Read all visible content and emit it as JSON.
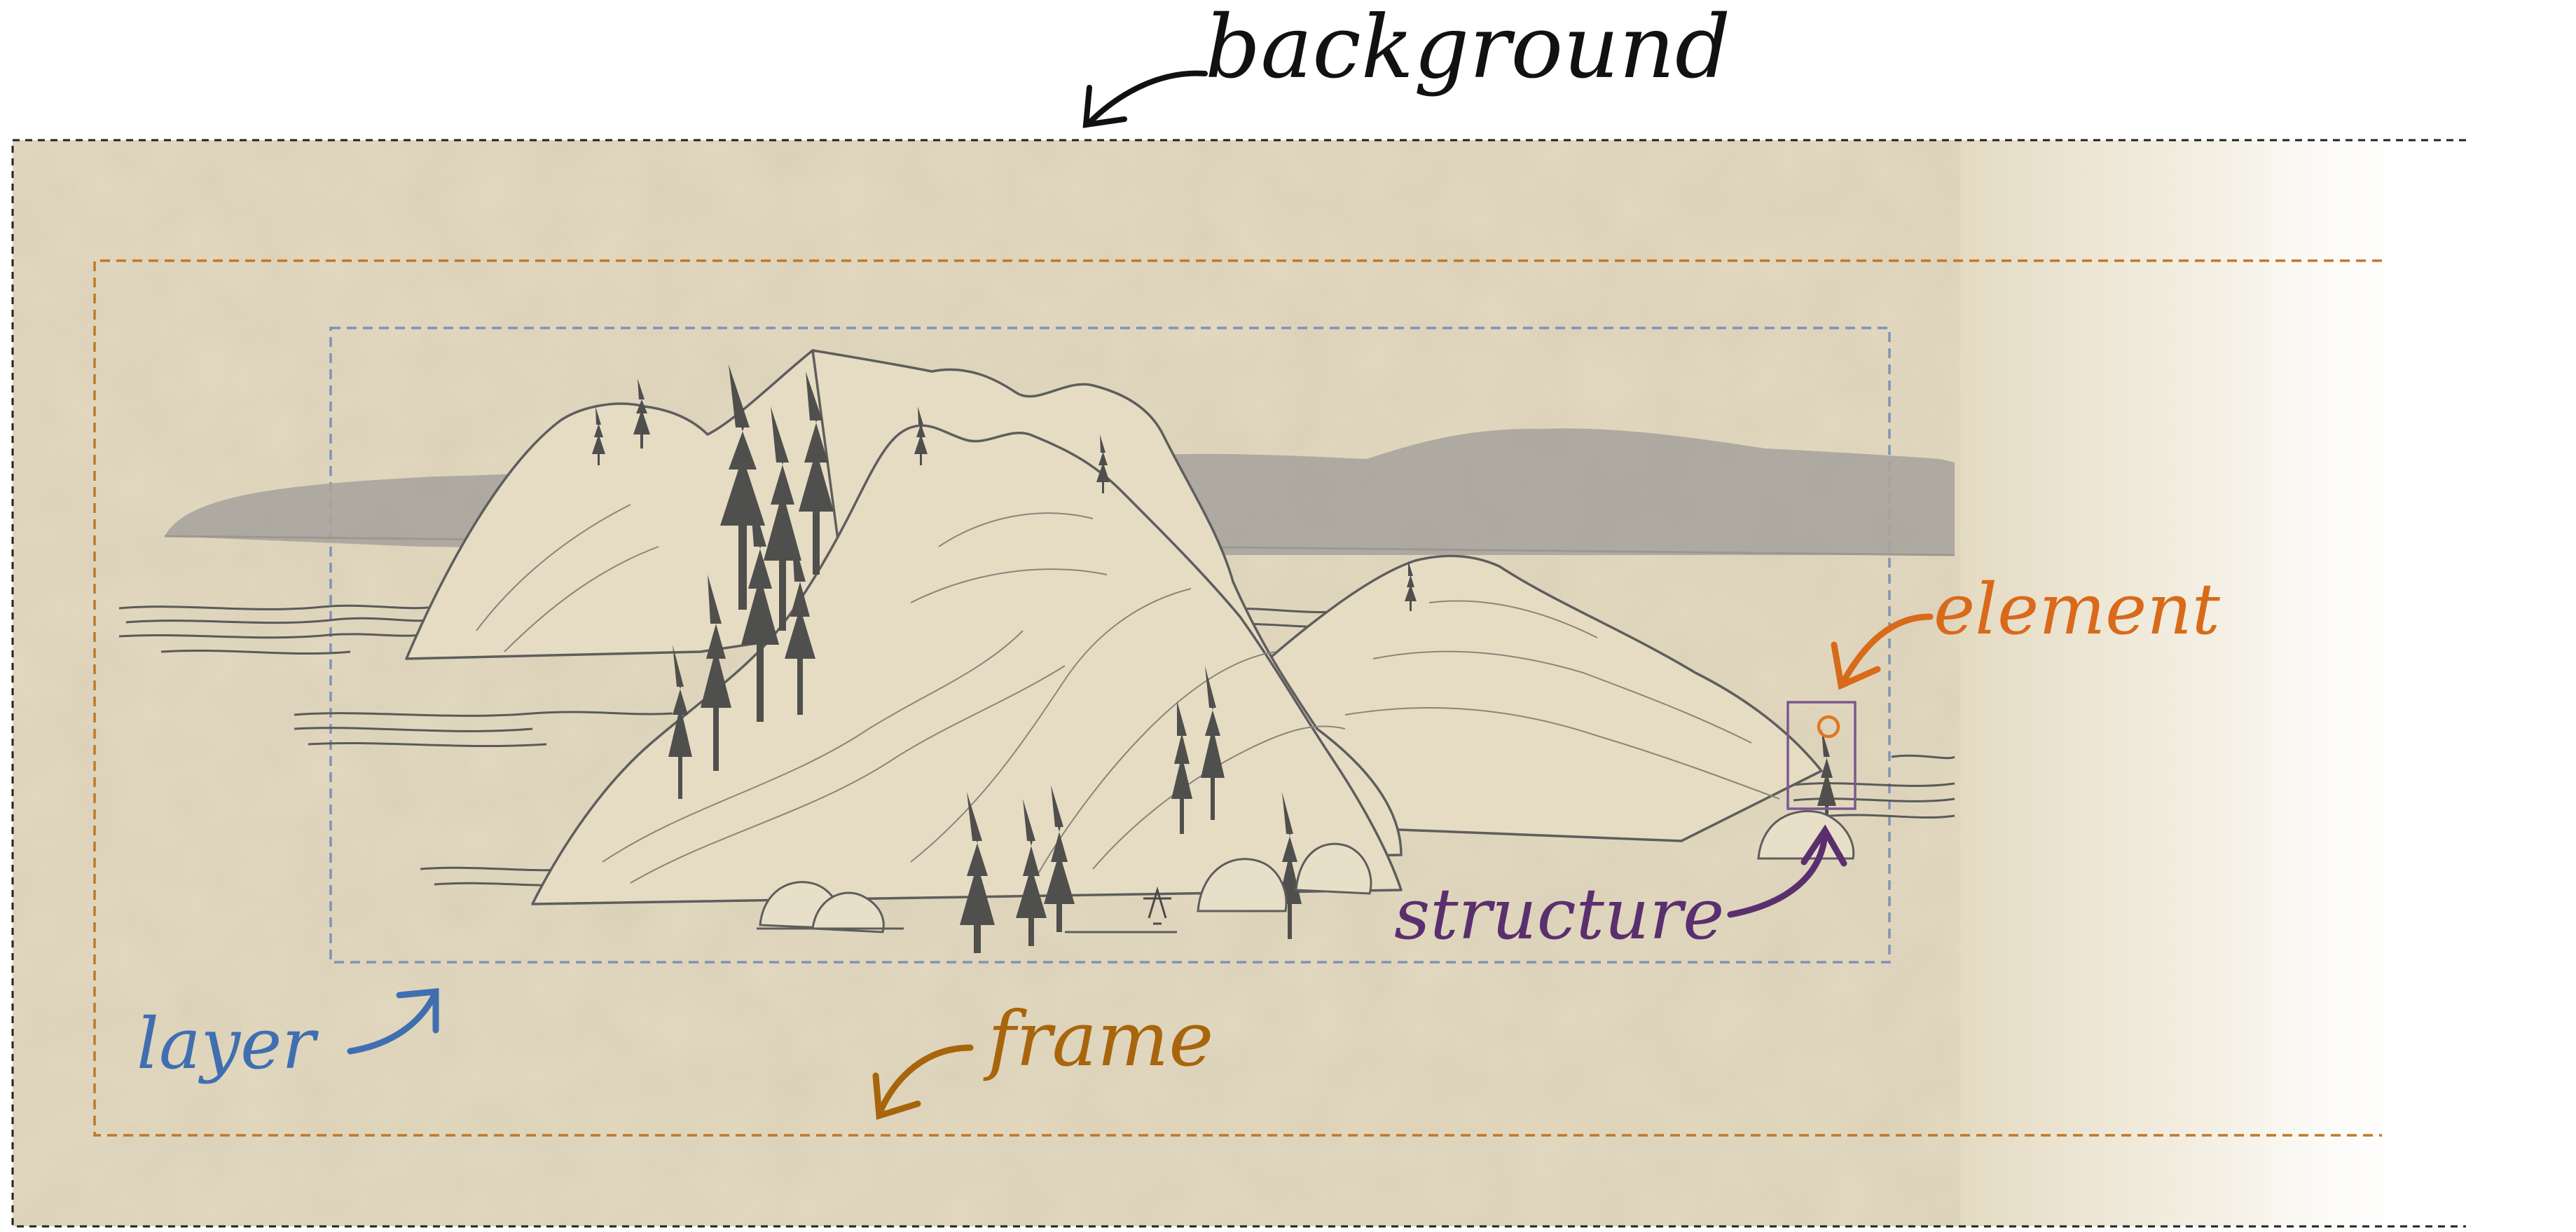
{
  "labels": {
    "background": "background",
    "frame": "frame",
    "layer": "layer",
    "structure": "structure",
    "element": "element"
  },
  "colors": {
    "background": "#111111",
    "frame": "#c0782a",
    "layer": "#3f6fb0",
    "structure": "#5a2f6e",
    "element": "#d86a1a",
    "paper": "#e3d9c0",
    "ink": "#4a4a4a",
    "distant_hills": "#a7a39c"
  },
  "icons": {
    "background": "curved-arrow-icon",
    "frame": "curved-arrow-icon",
    "layer": "curved-arrow-icon",
    "structure": "curved-arrow-icon",
    "element": "curved-arrow-icon"
  }
}
